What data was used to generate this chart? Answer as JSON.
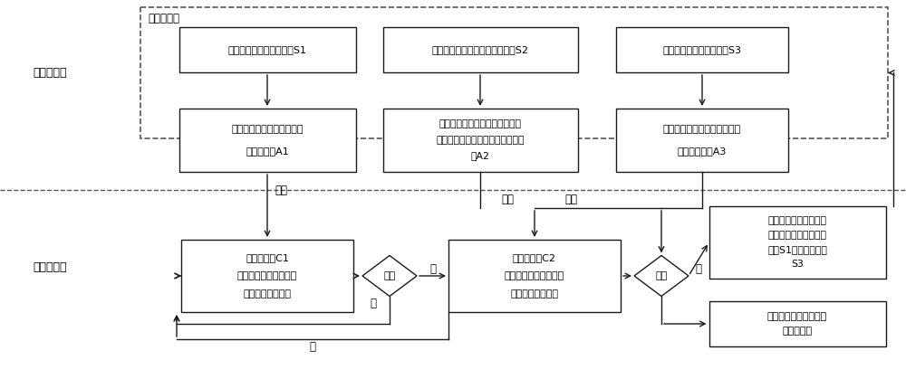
{
  "layer1_label": "算法开发层",
  "layer2_label": "部署执行层",
  "dashed_box_label": "数据样本库",
  "box1_top": "构建作物图像训练样木库S1",
  "box2_top": "构建作物生长子特征参数数据库S2",
  "box3_top": "构建杂草数捆图像样木库S3",
  "box1_mid_l1": "训练深度神经网络，获得作",
  "box1_mid_l2": "物检测模型A1",
  "box2_mid_l1": "统计作物生长特征参数范围及均",
  "box2_mid_l2": "值，获得各参数指标特征及分类模",
  "box2_mid_l3": "型A2",
  "box3_mid_l1": "训练深度神经网络，获得杂草",
  "box3_mid_l2": "目标识别模型A3",
  "box_c1_l1": "作物分类器C1",
  "box_c1_l2": "对输入图像进行作物识",
  "box_c1_l3": "别分类，输出结果",
  "box_c2_l1": "作物分类器C2",
  "box_c2_l2": "对输入图像进行作物识",
  "box_c2_l3": "别分类，输出结果",
  "diamond1_label": "作物",
  "diamond2_label": "作物",
  "box_upload_l1": "上传检测图像并人工标",
  "box_upload_l2": "记，分类存储到作物样",
  "box_upload_l3": "本库S1和杂草样本库",
  "box_upload_l4": "S3",
  "box_report_l1": "上报检测结果（杂草及",
  "box_report_l2": "具体类型）",
  "label_load1": "加载",
  "label_load2": "加载",
  "label_load3": "加载",
  "label_yes1": "是",
  "label_yes2": "是",
  "label_no1": "否",
  "label_no2": "否",
  "bg_color": "#ffffff",
  "box_fill": "#ffffff",
  "edge_color": "#1a1a1a",
  "text_color": "#000000",
  "dashed_color": "#555555"
}
